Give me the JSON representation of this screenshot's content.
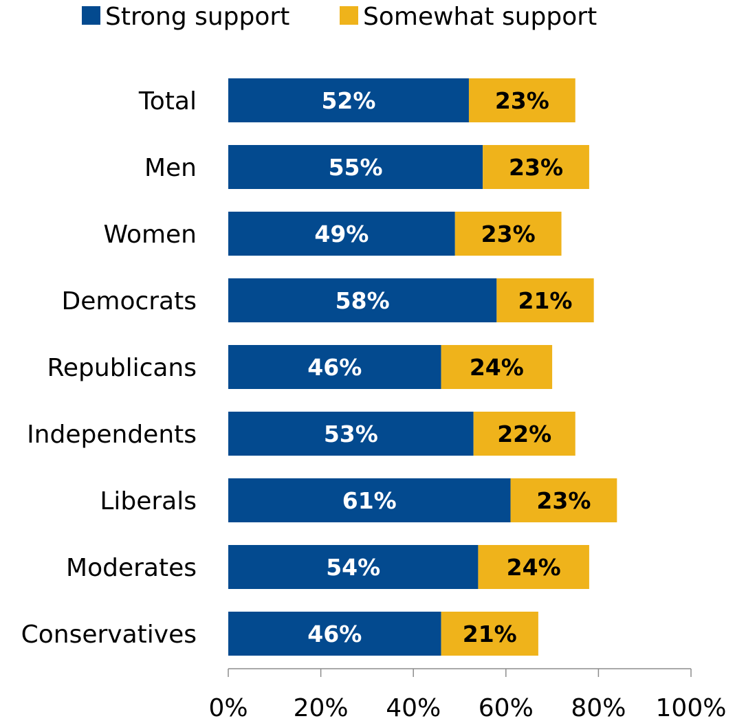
{
  "chart_data": {
    "type": "bar",
    "orientation": "horizontal",
    "stacked": true,
    "categories": [
      "Total",
      "Men",
      "Women",
      "Democrats",
      "Republicans",
      "Independents",
      "Liberals",
      "Moderates",
      "Conservatives"
    ],
    "series": [
      {
        "name": "Strong support",
        "color": "#034a8f",
        "label_color": "#ffffff",
        "values": [
          52,
          55,
          49,
          58,
          46,
          53,
          61,
          54,
          46
        ]
      },
      {
        "name": "Somewhat support",
        "color": "#efb31b",
        "label_color": "#000000",
        "values": [
          23,
          23,
          23,
          21,
          24,
          22,
          23,
          24,
          21
        ]
      }
    ],
    "xlim": [
      0,
      100
    ],
    "x_ticks": [
      0,
      20,
      40,
      60,
      80,
      100
    ],
    "tick_labels": [
      "0%",
      "20%",
      "40%",
      "60%",
      "80%",
      "100%"
    ],
    "value_suffix": "%",
    "legend_position": "top-left",
    "grid": false,
    "title": "",
    "xlabel": "",
    "ylabel": ""
  }
}
